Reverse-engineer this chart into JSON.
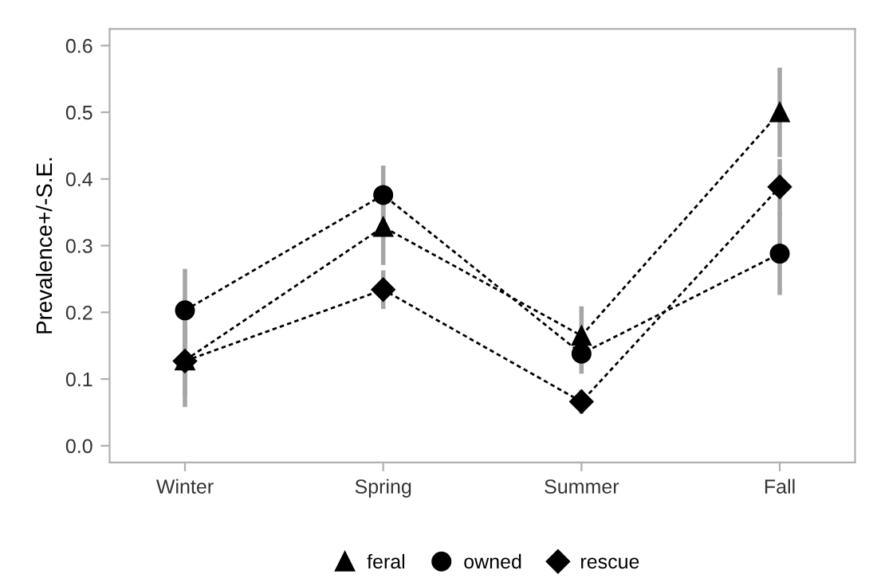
{
  "chart_data": {
    "type": "line",
    "ylabel": "Prevalence+/-S.E.",
    "categories": [
      "Winter",
      "Spring",
      "Summer",
      "Fall"
    ],
    "ylim": [
      -0.025,
      0.625
    ],
    "yticks": [
      {
        "value": 0,
        "label": "0.0"
      },
      0.1,
      0.2,
      0.3,
      0.4,
      0.5,
      0.6
    ],
    "line_style": "dashed",
    "grid": false,
    "legend": "bottom",
    "series": [
      {
        "name": "feral",
        "color": "#000000",
        "marker": "triangle",
        "values": [
          0.128,
          0.328,
          0.165,
          0.5
        ],
        "errors": [
          0.07,
          0.057,
          0.044,
          0.067
        ]
      },
      {
        "name": "owned",
        "color": "#000000",
        "marker": "circle",
        "values": [
          0.203,
          0.376,
          0.138,
          0.288
        ],
        "errors": [
          0.062,
          0.044,
          0.03,
          0.062
        ]
      },
      {
        "name": "rescue",
        "color": "#000000",
        "marker": "diamond",
        "values": [
          0.127,
          0.234,
          0.066,
          0.388
        ],
        "errors": [
          0.053,
          0.029,
          0.018,
          0.042
        ]
      }
    ]
  }
}
